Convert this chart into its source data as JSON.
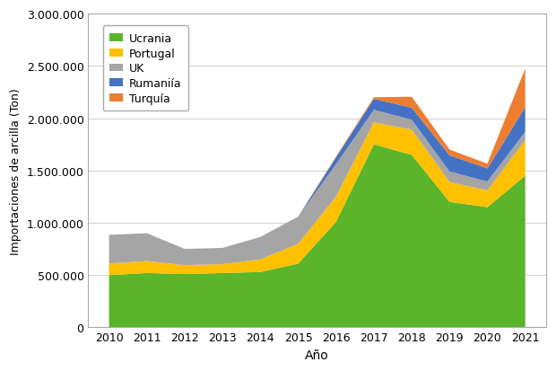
{
  "years": [
    2010,
    2011,
    2012,
    2013,
    2014,
    2015,
    2016,
    2017,
    2018,
    2019,
    2020,
    2021
  ],
  "ucrania": [
    500000,
    520000,
    510000,
    520000,
    530000,
    610000,
    1010000,
    1750000,
    1650000,
    1200000,
    1150000,
    1450000
  ],
  "portugal": [
    110000,
    115000,
    85000,
    85000,
    120000,
    190000,
    240000,
    210000,
    240000,
    190000,
    160000,
    340000
  ],
  "uk": [
    275000,
    265000,
    155000,
    155000,
    215000,
    260000,
    310000,
    120000,
    95000,
    100000,
    85000,
    80000
  ],
  "rumania": [
    0,
    0,
    0,
    0,
    0,
    0,
    65000,
    105000,
    115000,
    155000,
    125000,
    235000
  ],
  "turquia": [
    0,
    0,
    0,
    0,
    0,
    0,
    10000,
    15000,
    105000,
    55000,
    45000,
    370000
  ],
  "colors": {
    "ucrania": "#5ab52a",
    "portugal": "#ffc000",
    "uk": "#a5a5a5",
    "rumania": "#4472c4",
    "turquia": "#ed7d31"
  },
  "labels": {
    "ucrania": "Ucrania",
    "portugal": "Portugal",
    "uk": "UK",
    "rumania": "Rumaniía",
    "turquia": "Turquía"
  },
  "xlabel": "Año",
  "ylabel": "Importaciones de arcilla (Ton)",
  "ylim": [
    0,
    3000000
  ],
  "yticks": [
    0,
    500000,
    1000000,
    1500000,
    2000000,
    2500000,
    3000000
  ],
  "background_color": "#ffffff",
  "grid_color": "#d4d4d4"
}
